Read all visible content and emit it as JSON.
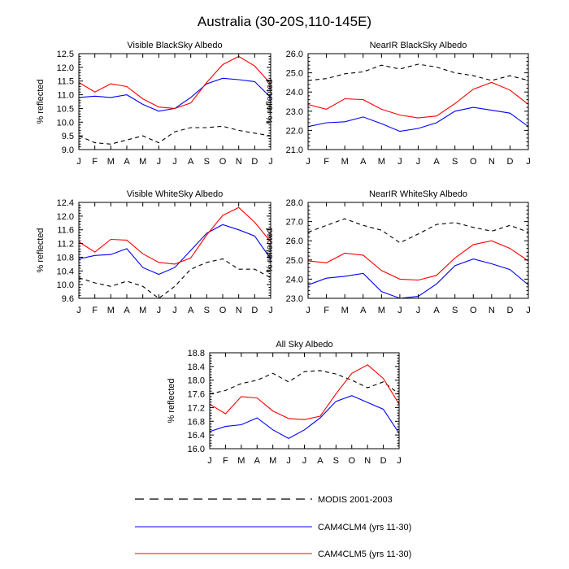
{
  "title": "Australia (30-20S,110-145E)",
  "months": [
    "J",
    "F",
    "M",
    "A",
    "M",
    "J",
    "J",
    "A",
    "S",
    "O",
    "N",
    "D",
    "J"
  ],
  "colors": {
    "modis": "#000000",
    "clm4": "#0000ff",
    "clm5": "#ff0000"
  },
  "legend": [
    {
      "key": "modis",
      "label": "MODIS 2001-2003",
      "dash": true
    },
    {
      "key": "clm4",
      "label": "CAM4CLM4 (yrs 11-30)",
      "dash": false
    },
    {
      "key": "clm5",
      "label": "CAM4CLM5 (yrs 11-30)",
      "dash": false
    }
  ],
  "chart_data": [
    {
      "type": "line",
      "title": "Visible BlackSky Albedo",
      "ylabel": "% reflected",
      "ylim": [
        9.0,
        12.5
      ],
      "yticks": [
        9.0,
        9.5,
        10.0,
        10.5,
        11.0,
        11.5,
        12.0,
        12.5
      ],
      "ytick_labels": [
        "9.0",
        "9.5",
        "10.0",
        "10.5",
        "11.0",
        "11.5",
        "12.0",
        "12.5"
      ],
      "series": [
        {
          "name": "MODIS 2001-2003",
          "key": "modis",
          "values": [
            9.5,
            9.25,
            9.2,
            9.35,
            9.5,
            9.25,
            9.65,
            9.8,
            9.8,
            9.85,
            9.7,
            9.6,
            9.5
          ]
        },
        {
          "name": "CAM4CLM4 (yrs 11-30)",
          "key": "clm4",
          "values": [
            10.9,
            10.95,
            10.9,
            11.0,
            10.65,
            10.4,
            10.5,
            10.9,
            11.4,
            11.6,
            11.55,
            11.48,
            10.9
          ]
        },
        {
          "name": "CAM4CLM5 (yrs 11-30)",
          "key": "clm5",
          "values": [
            11.45,
            11.1,
            11.4,
            11.3,
            10.85,
            10.55,
            10.5,
            10.7,
            11.45,
            12.1,
            12.4,
            12.05,
            11.4
          ]
        }
      ]
    },
    {
      "type": "line",
      "title": "NearIR BlackSky Albedo",
      "ylabel": "% reflected",
      "ylim": [
        21.0,
        26.0
      ],
      "yticks": [
        21.0,
        22.0,
        23.0,
        24.0,
        25.0,
        26.0
      ],
      "ytick_labels": [
        "21.0",
        "22.0",
        "23.0",
        "24.0",
        "25.0",
        "26.0"
      ],
      "series": [
        {
          "name": "MODIS 2001-2003",
          "key": "modis",
          "values": [
            24.6,
            24.7,
            24.95,
            25.05,
            25.4,
            25.2,
            25.45,
            25.3,
            25.0,
            24.85,
            24.6,
            24.85,
            24.6
          ]
        },
        {
          "name": "CAM4CLM4 (yrs 11-30)",
          "key": "clm4",
          "values": [
            22.2,
            22.4,
            22.45,
            22.7,
            22.35,
            21.95,
            22.1,
            22.4,
            23.0,
            23.2,
            23.05,
            22.9,
            22.2
          ]
        },
        {
          "name": "CAM4CLM5 (yrs 11-30)",
          "key": "clm5",
          "values": [
            23.35,
            23.1,
            23.65,
            23.6,
            23.1,
            22.8,
            22.65,
            22.75,
            23.4,
            24.15,
            24.5,
            24.1,
            23.35
          ]
        }
      ]
    },
    {
      "type": "line",
      "title": "Visible WhiteSky Albedo",
      "ylabel": "% reflected",
      "ylim": [
        9.6,
        12.4
      ],
      "yticks": [
        9.6,
        10.0,
        10.4,
        10.8,
        11.2,
        11.6,
        12.0,
        12.4
      ],
      "ytick_labels": [
        "9.6",
        "10.0",
        "10.4",
        "10.8",
        "11.2",
        "11.6",
        "12.0",
        "12.4"
      ],
      "series": [
        {
          "name": "MODIS 2001-2003",
          "key": "modis",
          "values": [
            10.2,
            10.05,
            9.95,
            10.1,
            9.95,
            9.6,
            9.95,
            10.45,
            10.65,
            10.75,
            10.45,
            10.45,
            10.2
          ]
        },
        {
          "name": "CAM4CLM4 (yrs 11-30)",
          "key": "clm4",
          "values": [
            10.75,
            10.85,
            10.88,
            11.05,
            10.5,
            10.3,
            10.5,
            11.0,
            11.5,
            11.75,
            11.6,
            11.42,
            10.75
          ]
        },
        {
          "name": "CAM4CLM5 (yrs 11-30)",
          "key": "clm5",
          "values": [
            11.25,
            10.95,
            11.32,
            11.3,
            10.9,
            10.65,
            10.6,
            10.78,
            11.45,
            12.02,
            12.25,
            11.82,
            11.25
          ]
        }
      ]
    },
    {
      "type": "line",
      "title": "NearIR WhiteSky Albedo",
      "ylabel": "% reflected",
      "ylim": [
        23.0,
        28.0
      ],
      "yticks": [
        23.0,
        24.0,
        25.0,
        26.0,
        27.0,
        28.0
      ],
      "ytick_labels": [
        "23.0",
        "24.0",
        "25.0",
        "26.0",
        "27.0",
        "28.0"
      ],
      "series": [
        {
          "name": "MODIS 2001-2003",
          "key": "modis",
          "values": [
            26.45,
            26.8,
            27.15,
            26.8,
            26.55,
            25.9,
            26.35,
            26.85,
            26.95,
            26.7,
            26.5,
            26.8,
            26.45
          ]
        },
        {
          "name": "CAM4CLM4 (yrs 11-30)",
          "key": "clm4",
          "values": [
            23.7,
            24.05,
            24.15,
            24.3,
            23.35,
            23.0,
            23.1,
            23.75,
            24.7,
            25.05,
            24.8,
            24.5,
            23.7
          ]
        },
        {
          "name": "CAM4CLM5 (yrs 11-30)",
          "key": "clm5",
          "values": [
            24.95,
            24.85,
            25.35,
            25.25,
            24.45,
            24.0,
            23.95,
            24.2,
            25.1,
            25.8,
            26.0,
            25.6,
            24.95
          ]
        }
      ]
    },
    {
      "type": "line",
      "title": "All Sky Albedo",
      "ylabel": "% reflected",
      "ylim": [
        16.0,
        18.8
      ],
      "yticks": [
        16.0,
        16.4,
        16.8,
        17.2,
        17.6,
        18.0,
        18.4,
        18.8
      ],
      "ytick_labels": [
        "16.0",
        "16.4",
        "16.8",
        "17.2",
        "17.6",
        "18.0",
        "18.4",
        "18.8"
      ],
      "series": [
        {
          "name": "MODIS 2001-2003",
          "key": "modis",
          "values": [
            17.6,
            17.7,
            17.9,
            18.0,
            18.2,
            17.95,
            18.25,
            18.28,
            18.18,
            18.0,
            17.78,
            17.95,
            17.6
          ]
        },
        {
          "name": "CAM4CLM4 (yrs 11-30)",
          "key": "clm4",
          "values": [
            16.5,
            16.65,
            16.7,
            16.9,
            16.55,
            16.3,
            16.55,
            16.9,
            17.38,
            17.55,
            17.35,
            17.15,
            16.45
          ]
        },
        {
          "name": "CAM4CLM5 (yrs 11-30)",
          "key": "clm5",
          "values": [
            17.3,
            17.02,
            17.52,
            17.48,
            17.1,
            16.88,
            16.85,
            16.95,
            17.6,
            18.2,
            18.45,
            18.05,
            17.3
          ]
        }
      ]
    }
  ]
}
